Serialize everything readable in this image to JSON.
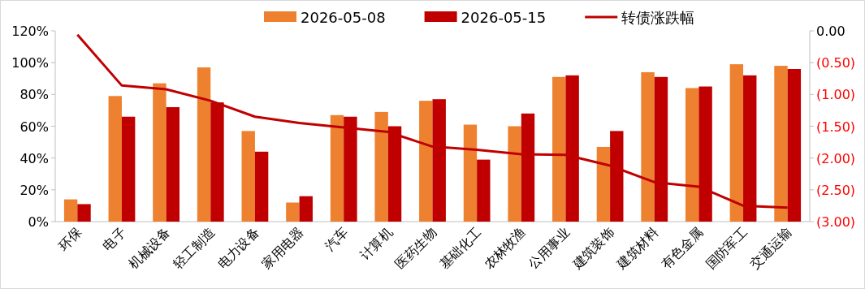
{
  "chart_data": {
    "type": "bar",
    "categories": [
      "环保",
      "电子",
      "机械设备",
      "轻工制造",
      "电力设备",
      "家用电器",
      "汽车",
      "计算机",
      "医药生物",
      "基础化工",
      "农林牧渔",
      "公用事业",
      "建筑装饰",
      "建筑材料",
      "有色金属",
      "国防军工",
      "交通运输"
    ],
    "series": [
      {
        "name": "2026-05-08",
        "color": "#ed8130",
        "values": [
          14,
          79,
          87,
          97,
          57,
          12,
          67,
          69,
          76,
          61,
          60,
          91,
          47,
          94,
          84,
          99,
          98
        ]
      },
      {
        "name": "2026-05-15",
        "color": "#c00000",
        "values": [
          11,
          66,
          72,
          75,
          44,
          16,
          66,
          60,
          77,
          39,
          68,
          92,
          57,
          91,
          85,
          92,
          96
        ]
      },
      {
        "name": "转债涨跌幅",
        "type": "line",
        "axis": "y2",
        "color": "#c00000",
        "values": [
          -0.06,
          -0.86,
          -0.92,
          -1.1,
          -1.35,
          -1.45,
          -1.52,
          -1.59,
          -1.82,
          -1.87,
          -1.94,
          -1.95,
          -2.12,
          -2.38,
          -2.45,
          -2.75,
          -2.78
        ]
      }
    ],
    "ylim": [
      0,
      120
    ],
    "yticks": [
      {
        "value": 0,
        "label": "0%"
      },
      {
        "value": 20,
        "label": "20%"
      },
      {
        "value": 40,
        "label": "40%"
      },
      {
        "value": 60,
        "label": "60%"
      },
      {
        "value": 80,
        "label": "80%"
      },
      {
        "value": 100,
        "label": "100%"
      },
      {
        "value": 120,
        "label": "120%"
      }
    ],
    "y2lim": [
      -3,
      0
    ],
    "y2ticks": [
      {
        "value": 0,
        "label": "0.00"
      },
      {
        "value": -0.5,
        "label": "(0.50)"
      },
      {
        "value": -1,
        "label": "(1.00)"
      },
      {
        "value": -1.5,
        "label": "(1.50)"
      },
      {
        "value": -2,
        "label": "(2.00)"
      },
      {
        "value": -2.5,
        "label": "(2.50)"
      },
      {
        "value": -3,
        "label": "(3.00)"
      }
    ],
    "legend": "top",
    "grid": false
  }
}
